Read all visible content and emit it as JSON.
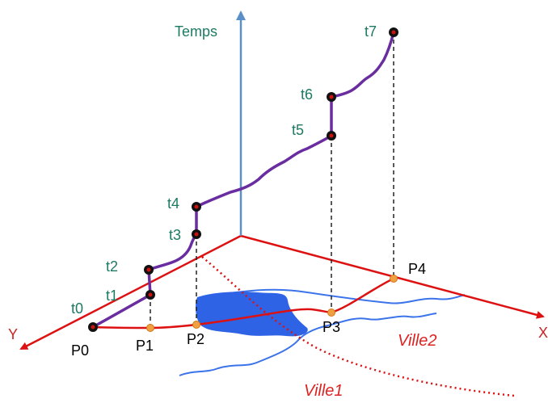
{
  "axes": {
    "time_label": "Temps",
    "x_label": "X",
    "y_label": "Y"
  },
  "times": [
    "t0",
    "t1",
    "t2",
    "t3",
    "t4",
    "t5",
    "t6",
    "t7"
  ],
  "points": [
    "P0",
    "P1",
    "P2",
    "P3",
    "P4"
  ],
  "cities": [
    "Ville1",
    "Ville2"
  ],
  "colors": {
    "axis": "#dd1111",
    "time_axis": "#5a8fc8",
    "trajectory": "#6a2da0",
    "river": "#2f63e6",
    "lake": "#2f63e6",
    "marker_time": "#111111",
    "marker_time_center": "#cc1111",
    "marker_point": "#f0a040",
    "label_text": "#1e7a63"
  }
}
